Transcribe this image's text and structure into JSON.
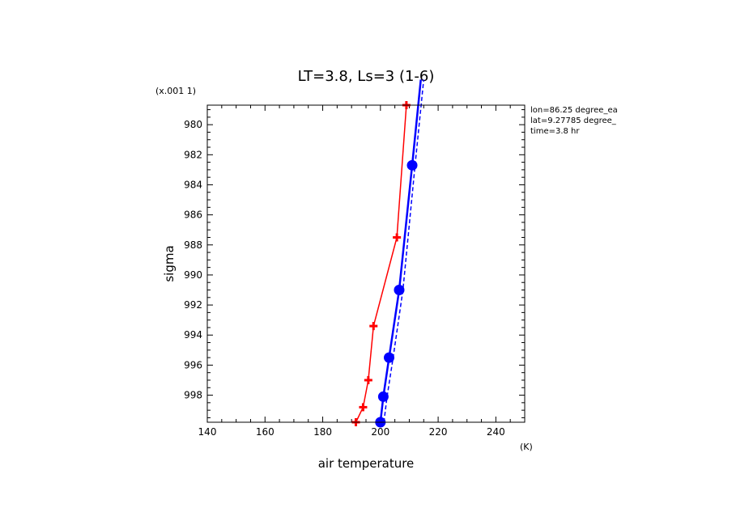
{
  "chart_data": {
    "type": "line",
    "title": "LT=3.8, Ls=3 (1-6)",
    "xlabel": "air temperature",
    "ylabel": "sigma",
    "x_unit": "(K)",
    "y_scale_note": "(x.001 1)",
    "xlim": [
      140,
      250
    ],
    "ylim": [
      999.8,
      978.7
    ],
    "y_inverted": true,
    "x_ticks": [
      140,
      160,
      180,
      200,
      220,
      240
    ],
    "y_ticks": [
      980,
      982,
      984,
      986,
      988,
      990,
      992,
      994,
      996,
      998
    ],
    "info": [
      "lon=86.25 degree_ea",
      "lat=9.27785 degree_",
      "time=3.8 hr"
    ],
    "grid": false,
    "series": [
      {
        "color": "#ff0000",
        "style": "solid",
        "marker": "plus",
        "points": [
          {
            "x": 191.5,
            "y": 999.8
          },
          {
            "x": 194.0,
            "y": 998.8
          },
          {
            "x": 195.8,
            "y": 997.0
          },
          {
            "x": 197.6,
            "y": 993.4
          },
          {
            "x": 205.7,
            "y": 987.5
          },
          {
            "x": 209.0,
            "y": 978.7
          }
        ]
      },
      {
        "color": "#0000ff",
        "style": "solid-thick",
        "marker": "circle",
        "points": [
          {
            "x": 200.0,
            "y": 999.8
          },
          {
            "x": 201.0,
            "y": 998.1
          },
          {
            "x": 203.0,
            "y": 995.5
          },
          {
            "x": 206.5,
            "y": 991.0
          },
          {
            "x": 211.0,
            "y": 982.7
          },
          {
            "x": 214.0,
            "y": 977.0
          }
        ],
        "extends_beyond_top": true
      },
      {
        "color": "#0000ff",
        "style": "dashed",
        "marker": "none",
        "points": [
          {
            "x": 201.2,
            "y": 999.8
          },
          {
            "x": 202.3,
            "y": 998.1
          },
          {
            "x": 204.4,
            "y": 995.5
          },
          {
            "x": 207.8,
            "y": 991.0
          },
          {
            "x": 212.0,
            "y": 982.7
          },
          {
            "x": 215.0,
            "y": 977.0
          }
        ],
        "extends_beyond_top": true
      }
    ]
  }
}
